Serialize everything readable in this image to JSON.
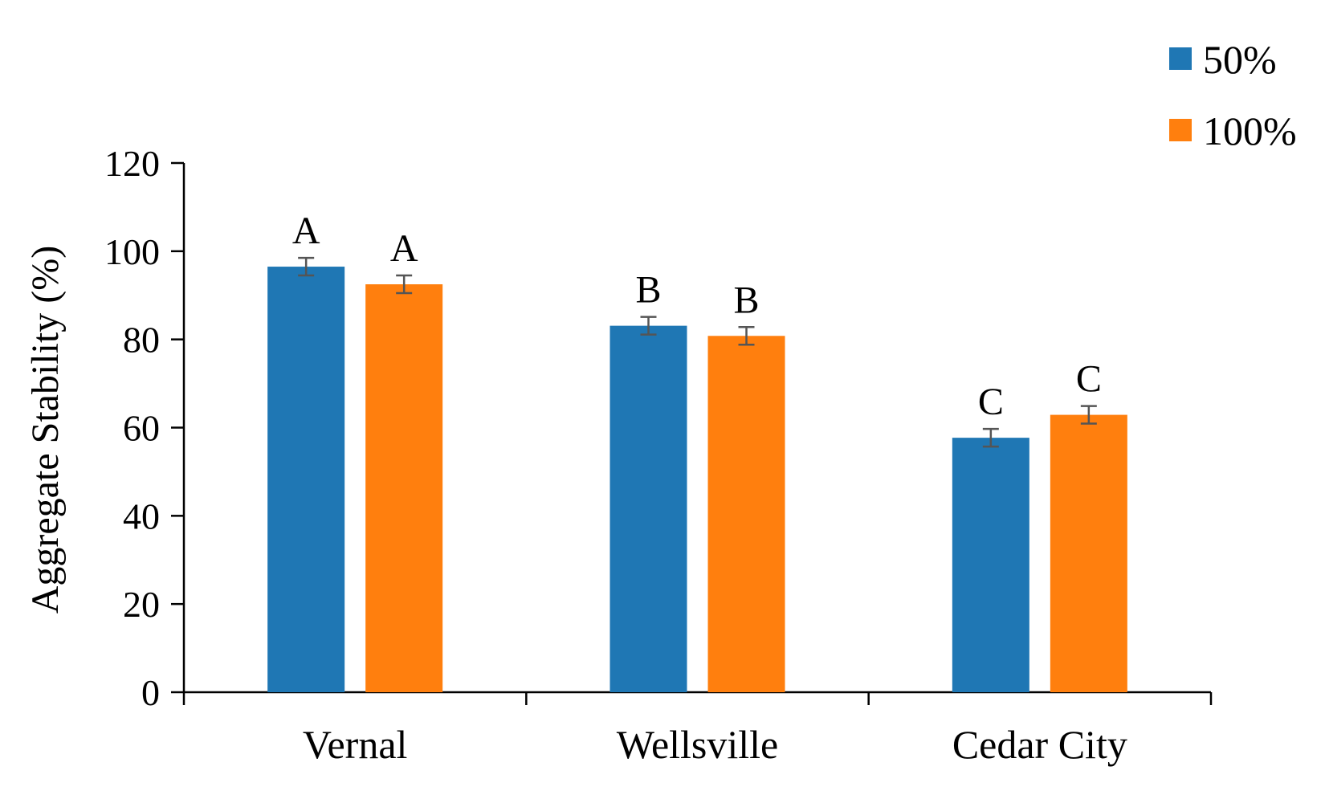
{
  "chart_data": {
    "type": "bar",
    "title": "",
    "xlabel": "",
    "ylabel": "Aggregate Stability (%)",
    "ylim": [
      0,
      120
    ],
    "yticks": [
      "0",
      "20",
      "40",
      "60",
      "80",
      "100",
      "120"
    ],
    "grid": false,
    "legend_position": "top-right",
    "categories": [
      "Vernal",
      "Wellsville",
      "Cedar City"
    ],
    "series": [
      {
        "name": "50%",
        "color": "#1f77b4",
        "values": [
          96.5,
          83.1,
          57.7
        ],
        "errors": [
          2.0,
          2.0,
          2.0
        ],
        "labels": [
          "A",
          "B",
          "C"
        ]
      },
      {
        "name": "100%",
        "color": "#ff7f0e",
        "values": [
          92.5,
          80.8,
          62.9
        ],
        "errors": [
          2.0,
          2.0,
          2.0
        ],
        "labels": [
          "A",
          "B",
          "C"
        ]
      }
    ]
  }
}
